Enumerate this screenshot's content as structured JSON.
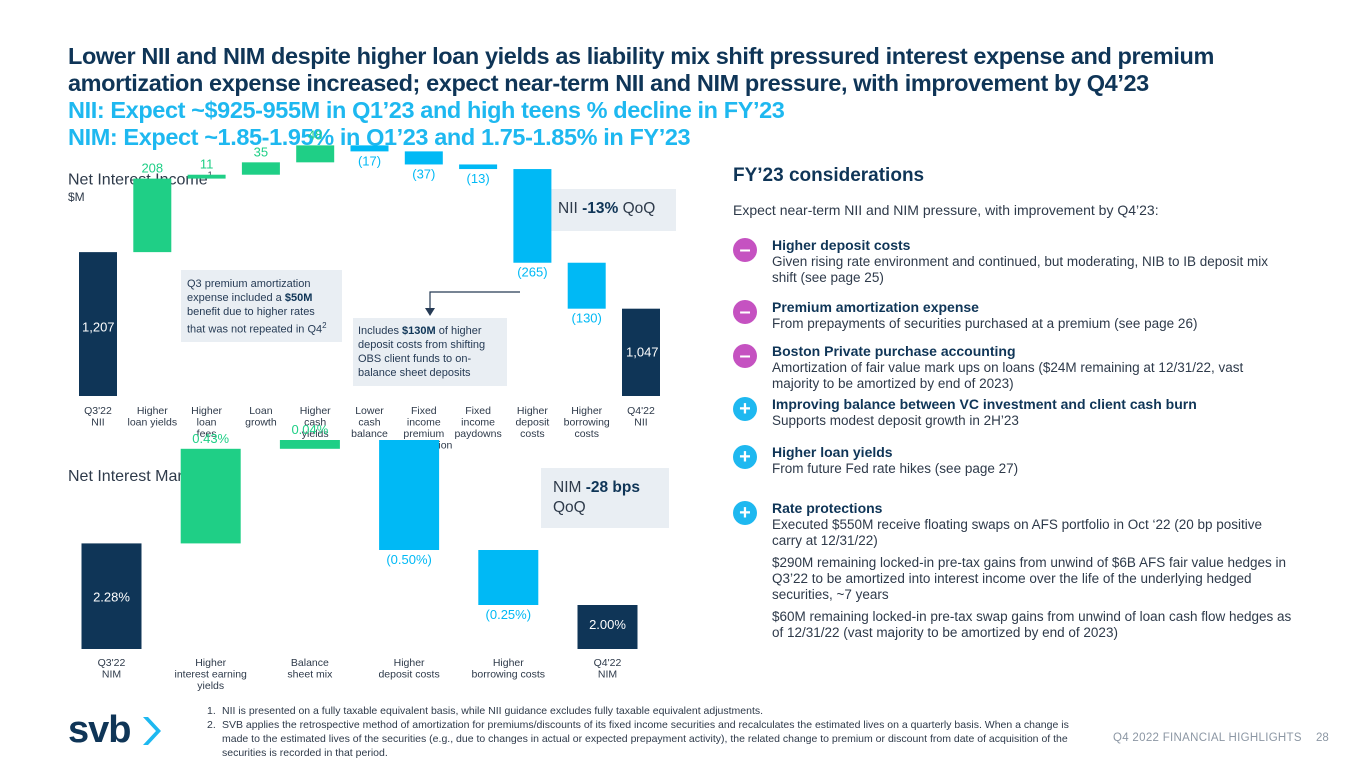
{
  "header": {
    "title_line1": "Lower NII and NIM despite higher loan yields as liability mix shift pressured interest expense and premium",
    "title_line2": "amortization expense increased; expect near-term NII and NIM pressure, with improvement by Q4’23",
    "subtitle_line1": "NII: Expect ~$925-955M in Q1’23 and high teens % decline in FY’23",
    "subtitle_line2": "NIM: Expect ~1.85-1.95% in Q1’23 and 1.75-1.85% in FY’23"
  },
  "nii_section": {
    "title": "Net Interest Income",
    "title_sup": "1",
    "unit": "$M"
  },
  "nim_section": {
    "title": "Net Interest Margin"
  },
  "nii_kpi": {
    "prefix": "NII ",
    "bold": "-13%",
    "suffix": " QoQ"
  },
  "nim_kpi": {
    "prefix": "NIM ",
    "bold": "-28 bps",
    "suffix": "QoQ"
  },
  "callouts": {
    "premium": {
      "line1": "Q3 premium amortization",
      "line2_pre": "expense included a ",
      "line2_bold": "$50M",
      "line3": "benefit due to higher rates",
      "line4": "that was not repeated in Q4",
      "sup": "2"
    },
    "deposit": {
      "pre": "Includes ",
      "bold": "$130M",
      "post": " of higher deposit costs from shifting OBS client funds to on-balance sheet deposits"
    }
  },
  "colors": {
    "navy": "#0f3557",
    "green": "#1fcf86",
    "blue": "#00b9f5",
    "minus": "#c552c1",
    "plus": "#1eb8f0"
  },
  "chart_data": [
    {
      "type": "bar",
      "subtype": "waterfall",
      "title": "Net Interest Income",
      "unit": "$M",
      "categories": [
        "Q3'22 NII",
        "Higher loan yields",
        "Higher loan fees",
        "Loan growth",
        "Higher cash yields",
        "Lower cash balance",
        "Fixed income premium amortization",
        "Fixed income paydowns",
        "Higher deposit costs",
        "Higher borrowing costs",
        "Q4'22 NII"
      ],
      "category_lines": [
        [
          "Q3'22",
          "NII"
        ],
        [
          "Higher",
          "loan yields"
        ],
        [
          "Higher",
          "loan",
          "fees"
        ],
        [
          "Loan",
          "growth"
        ],
        [
          "Higher",
          "cash",
          "yields"
        ],
        [
          "Lower",
          "cash",
          "balance"
        ],
        [
          "Fixed",
          "income",
          "premium",
          "amortization"
        ],
        [
          "Fixed",
          "income",
          "paydowns"
        ],
        [
          "Higher",
          "deposit",
          "costs"
        ],
        [
          "Higher",
          "borrowing",
          "costs"
        ],
        [
          "Q4'22",
          "NII"
        ]
      ],
      "values": [
        1207,
        208,
        11,
        35,
        48,
        -17,
        -37,
        -13,
        -265,
        -130,
        1047
      ],
      "labels": [
        "1,207",
        "208",
        "11",
        "35",
        "48",
        "(17)",
        "(37)",
        "(13)",
        "(265)",
        "(130)",
        "1,047"
      ],
      "kinds": [
        "total",
        "delta",
        "delta",
        "delta",
        "delta",
        "delta",
        "delta",
        "delta",
        "delta",
        "delta",
        "total"
      ]
    },
    {
      "type": "bar",
      "subtype": "waterfall",
      "title": "Net Interest Margin",
      "unit": "%",
      "categories": [
        "Q3'22 NIM",
        "Higher interest earning yields",
        "Balance sheet mix",
        "Higher deposit costs",
        "Higher borrowing costs",
        "Q4'22 NIM"
      ],
      "category_lines": [
        [
          "Q3'22",
          "NIM"
        ],
        [
          "Higher",
          "interest earning",
          "yields"
        ],
        [
          "Balance",
          "sheet mix"
        ],
        [
          "Higher",
          "deposit costs"
        ],
        [
          "Higher",
          "borrowing costs"
        ],
        [
          "Q4'22",
          "NIM"
        ]
      ],
      "values": [
        2.28,
        0.43,
        0.04,
        -0.5,
        -0.25,
        2.0
      ],
      "labels": [
        "2.28%",
        "0.43%",
        "0.04%",
        "(0.50%)",
        "(0.25%)",
        "2.00%"
      ],
      "kinds": [
        "total",
        "delta",
        "delta",
        "delta",
        "delta",
        "total"
      ]
    }
  ],
  "considerations": {
    "title": "FY’23 considerations",
    "intro": "Expect near-term NII and NIM pressure, with improvement by Q4’23:",
    "items": [
      {
        "sign": "–",
        "kind": "minus",
        "head": "Higher deposit costs",
        "body": [
          "Given rising rate environment and continued, but moderating, NIB to IB deposit mix shift (see page 25)"
        ]
      },
      {
        "sign": "–",
        "kind": "minus",
        "head": "Premium amortization expense",
        "body": [
          "From prepayments of securities purchased at a premium (see page 26)"
        ]
      },
      {
        "sign": "–",
        "kind": "minus",
        "head": "Boston Private purchase accounting",
        "body": [
          "Amortization of fair value mark ups on loans ($24M remaining at 12/31/22, vast majority to be amortized by end of 2023)"
        ]
      },
      {
        "sign": "+",
        "kind": "plus",
        "head": "Improving balance between VC investment and client cash burn",
        "body": [
          "Supports modest deposit growth in 2H’23"
        ]
      },
      {
        "sign": "+",
        "kind": "plus",
        "head": "Higher loan yields",
        "body": [
          "From future Fed rate hikes (see page 27)"
        ]
      },
      {
        "sign": "+",
        "kind": "plus",
        "head": "Rate protections",
        "body": [
          "Executed $550M receive floating swaps on AFS portfolio in Oct ‘22 (20 bp positive carry at 12/31/22)",
          "$290M remaining locked-in pre-tax gains from unwind of $6B AFS fair value hedges in Q3’22 to be amortized into interest income over the life of the underlying hedged securities, ~7 years",
          "$60M remaining locked-in pre-tax swap gains from unwind of loan cash flow hedges as of 12/31/22 (vast majority to be amortized by end of 2023)"
        ]
      }
    ]
  },
  "footnotes": [
    {
      "num": "1.",
      "text": "NII is presented on a fully taxable equivalent basis, while NII guidance excludes fully taxable equivalent adjustments."
    },
    {
      "num": "2.",
      "text": "SVB applies the retrospective method of amortization for premiums/discounts of its fixed income securities and recalculates the estimated lives on a quarterly basis. When a change is made to the estimated lives of the securities (e.g., due to changes in actual or expected prepayment activity), the related change to premium or discount from date of acquisition of the securities is recorded in that period."
    }
  ],
  "footer": {
    "logo_text": "svb",
    "section": "Q4 2022 FINANCIAL HIGHLIGHTS",
    "page": "28"
  }
}
